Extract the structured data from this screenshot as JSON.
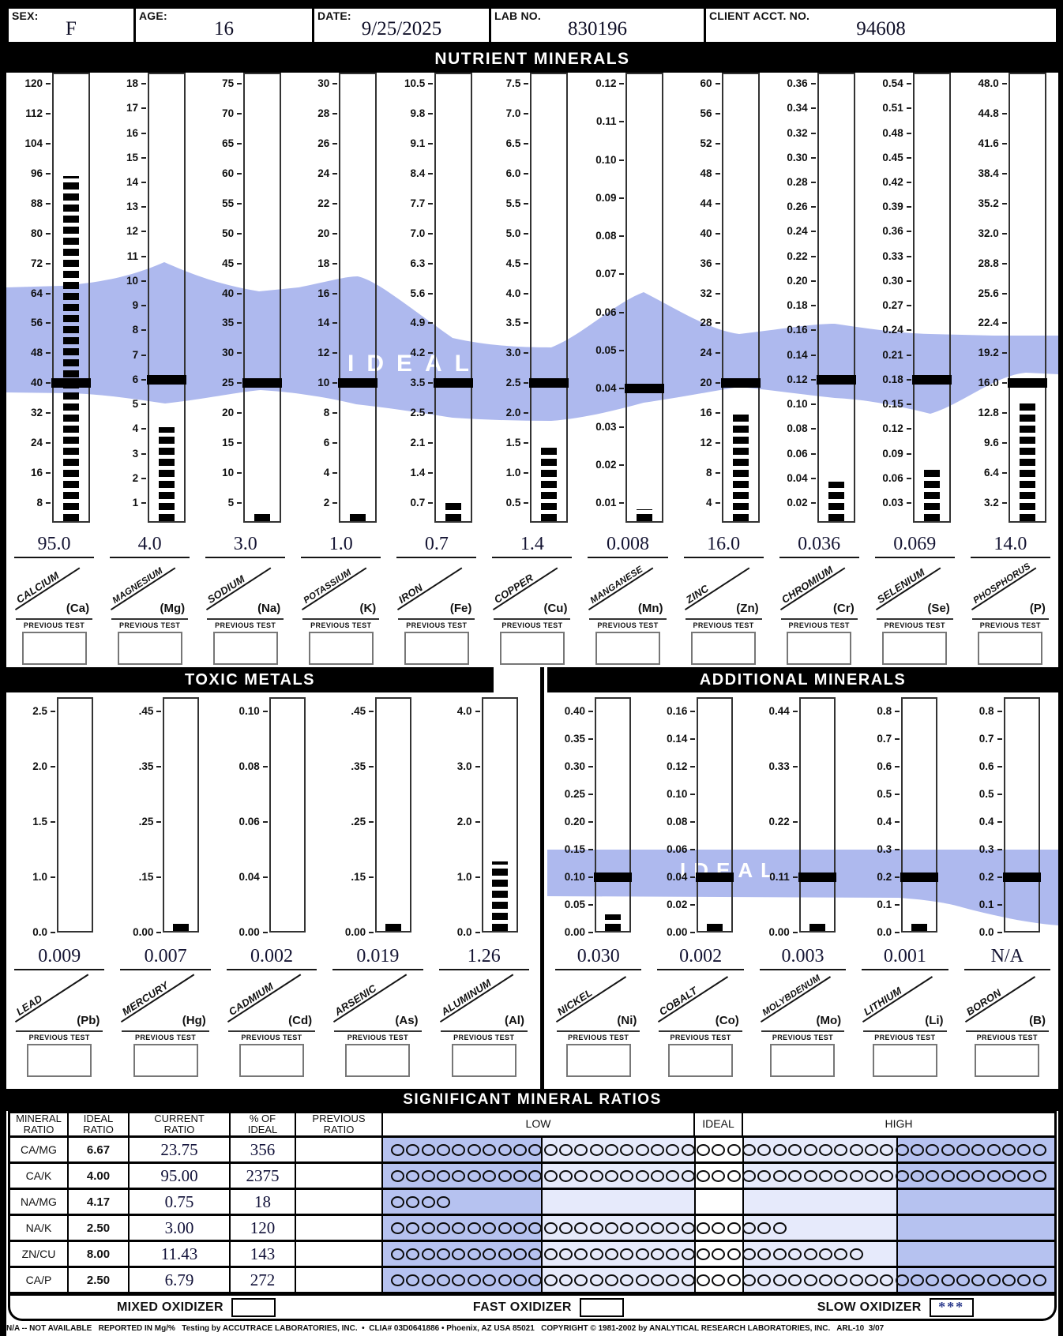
{
  "header": {
    "fields": [
      {
        "label": "SEX:",
        "value": "F"
      },
      {
        "label": "AGE:",
        "value": "16"
      },
      {
        "label": "DATE:",
        "value": "9/25/2025"
      },
      {
        "label": "LAB NO.",
        "value": "830196"
      },
      {
        "label": "CLIENT ACCT. NO.",
        "value": "94608"
      }
    ]
  },
  "sections": {
    "nutrient_title": "NUTRIENT MINERALS",
    "toxic_title": "TOXIC METALS",
    "additional_title": "ADDITIONAL MINERALS",
    "ratios_title": "SIGNIFICANT MINERAL RATIOS",
    "ideal_watermark": "IDEAL",
    "previous_test_label": "PREVIOUS TEST"
  },
  "colors": {
    "band": "#aeb9ee",
    "ratio_dark": "#b6c2f0",
    "ratio_light": "#e6eafb",
    "banner_bg": "#000000",
    "value_ink": "#141433"
  },
  "nutrient_minerals": {
    "charts": [
      {
        "id": "calcium",
        "name": "CALCIUM",
        "symbol": "(Ca)",
        "value": "95.0",
        "numeric": 95.0,
        "ideal": 40,
        "bar_visible": true,
        "previous": "",
        "ticks": [
          "120",
          "112",
          "104",
          "96",
          "88",
          "80",
          "72",
          "64",
          "56",
          "48",
          "40",
          "32",
          "24",
          "16",
          "8"
        ]
      },
      {
        "id": "magnesium",
        "name": "MAGNESIUM",
        "symbol": "(Mg)",
        "value": "4.0",
        "numeric": 4.0,
        "ideal": 6,
        "bar_visible": true,
        "previous": "",
        "ticks": [
          "18",
          "17",
          "16",
          "15",
          "14",
          "13",
          "12",
          "11",
          "10",
          "9",
          "8",
          "7",
          "6",
          "5",
          "4",
          "3",
          "2",
          "1"
        ]
      },
      {
        "id": "sodium",
        "name": "SODIUM",
        "symbol": "(Na)",
        "value": "3.0",
        "numeric": 3.0,
        "ideal": 25,
        "bar_visible": true,
        "previous": "",
        "ticks": [
          "75",
          "70",
          "65",
          "60",
          "55",
          "50",
          "45",
          "40",
          "35",
          "30",
          "25",
          "20",
          "15",
          "10",
          "5"
        ]
      },
      {
        "id": "potassium",
        "name": "POTASSIUM",
        "symbol": "(K)",
        "value": "1.0",
        "numeric": 1.0,
        "ideal": 10,
        "bar_visible": true,
        "previous": "",
        "ticks": [
          "30",
          "28",
          "26",
          "24",
          "22",
          "20",
          "18",
          "16",
          "14",
          "12",
          "10",
          "8",
          "6",
          "4",
          "2"
        ]
      },
      {
        "id": "iron",
        "name": "IRON",
        "symbol": "(Fe)",
        "value": "0.7",
        "numeric": 0.7,
        "ideal": 3.5,
        "bar_visible": true,
        "previous": "",
        "ticks": [
          "10.5",
          "9.8",
          "9.1",
          "8.4",
          "7.7",
          "7.0",
          "6.3",
          "5.6",
          "4.9",
          "4.2",
          "3.5",
          "2.5",
          "2.1",
          "1.4",
          "0.7"
        ]
      },
      {
        "id": "copper",
        "name": "COPPER",
        "symbol": "(Cu)",
        "value": "1.4",
        "numeric": 1.4,
        "ideal": 2.5,
        "bar_visible": true,
        "previous": "",
        "ticks": [
          "7.5",
          "7.0",
          "6.5",
          "6.0",
          "5.5",
          "5.0",
          "4.5",
          "4.0",
          "3.5",
          "3.0",
          "2.5",
          "2.0",
          "1.5",
          "1.0",
          "0.5"
        ]
      },
      {
        "id": "manganese",
        "name": "MANGANESE",
        "symbol": "(Mn)",
        "value": "0.008",
        "numeric": 0.008,
        "ideal": 0.04,
        "bar_visible": true,
        "previous": "",
        "ticks": [
          "0.12",
          "0.11",
          "0.10",
          "0.09",
          "0.08",
          "0.07",
          "0.06",
          "0.05",
          "0.04",
          "0.03",
          "0.02",
          "0.01"
        ]
      },
      {
        "id": "zinc",
        "name": "ZINC",
        "symbol": "(Zn)",
        "value": "16.0",
        "numeric": 16.0,
        "ideal": 20,
        "bar_visible": true,
        "previous": "",
        "ticks": [
          "60",
          "56",
          "52",
          "48",
          "44",
          "40",
          "36",
          "32",
          "28",
          "24",
          "20",
          "16",
          "12",
          "8",
          "4"
        ]
      },
      {
        "id": "chromium",
        "name": "CHROMIUM",
        "symbol": "(Cr)",
        "value": "0.036",
        "numeric": 0.036,
        "ideal": 0.12,
        "bar_visible": true,
        "previous": "",
        "ticks": [
          "0.36",
          "0.34",
          "0.32",
          "0.30",
          "0.28",
          "0.26",
          "0.24",
          "0.22",
          "0.20",
          "0.18",
          "0.16",
          "0.14",
          "0.12",
          "0.10",
          "0.08",
          "0.06",
          "0.04",
          "0.02"
        ]
      },
      {
        "id": "selenium",
        "name": "SELENIUM",
        "symbol": "(Se)",
        "value": "0.069",
        "numeric": 0.069,
        "ideal": 0.18,
        "bar_visible": true,
        "previous": "",
        "ticks": [
          "0.54",
          "0.51",
          "0.48",
          "0.45",
          "0.42",
          "0.39",
          "0.36",
          "0.33",
          "0.30",
          "0.27",
          "0.24",
          "0.21",
          "0.18",
          "0.15",
          "0.12",
          "0.09",
          "0.06",
          "0.03"
        ]
      },
      {
        "id": "phosphorus",
        "name": "PHOSPHORUS",
        "symbol": "(P)",
        "value": "14.0",
        "numeric": 14.0,
        "ideal": 16.0,
        "bar_visible": true,
        "previous": "",
        "ticks": [
          "48.0",
          "44.8",
          "41.6",
          "38.4",
          "35.2",
          "32.0",
          "28.8",
          "25.6",
          "22.4",
          "19.2",
          "16.0",
          "12.8",
          "9.6",
          "6.4",
          "3.2"
        ]
      }
    ]
  },
  "toxic_metals": {
    "charts": [
      {
        "id": "lead",
        "name": "LEAD",
        "symbol": "(Pb)",
        "value": "0.009",
        "numeric": 0.009,
        "ideal": null,
        "bar_visible": false,
        "previous": "",
        "ticks": [
          "2.5",
          "2.0",
          "1.5",
          "1.0",
          "0.0"
        ]
      },
      {
        "id": "mercury",
        "name": "MERCURY",
        "symbol": "(Hg)",
        "value": "0.007",
        "numeric": 0.007,
        "ideal": null,
        "bar_visible": true,
        "previous": "",
        "ticks": [
          ".45",
          ".35",
          ".25",
          ".15",
          "0.00"
        ]
      },
      {
        "id": "cadmium",
        "name": "CADMIUM",
        "symbol": "(Cd)",
        "value": "0.002",
        "numeric": 0.002,
        "ideal": null,
        "bar_visible": false,
        "previous": "",
        "ticks": [
          "0.10",
          "0.08",
          "0.06",
          "0.04",
          "0.00"
        ]
      },
      {
        "id": "arsenic",
        "name": "ARSENIC",
        "symbol": "(As)",
        "value": "0.019",
        "numeric": 0.019,
        "ideal": null,
        "bar_visible": true,
        "previous": "",
        "ticks": [
          ".45",
          ".35",
          ".25",
          ".15",
          "0.00"
        ]
      },
      {
        "id": "aluminum",
        "name": "ALUMINUM",
        "symbol": "(Al)",
        "value": "1.26",
        "numeric": 1.26,
        "ideal": null,
        "bar_visible": true,
        "previous": "",
        "ticks": [
          "4.0",
          "3.0",
          "2.0",
          "1.0",
          "0.0"
        ]
      }
    ]
  },
  "additional_minerals": {
    "charts": [
      {
        "id": "nickel",
        "name": "NICKEL",
        "symbol": "(Ni)",
        "value": "0.030",
        "numeric": 0.03,
        "ideal": 0.1,
        "bar_visible": true,
        "previous": "",
        "ticks": [
          "0.40",
          "0.35",
          "0.30",
          "0.25",
          "0.20",
          "0.15",
          "0.10",
          "0.05",
          "0.00"
        ]
      },
      {
        "id": "cobalt",
        "name": "COBALT",
        "symbol": "(Co)",
        "value": "0.002",
        "numeric": 0.002,
        "ideal": 0.04,
        "bar_visible": true,
        "previous": "",
        "ticks": [
          "0.16",
          "0.14",
          "0.12",
          "0.10",
          "0.08",
          "0.06",
          "0.04",
          "0.02",
          "0.00"
        ]
      },
      {
        "id": "molybdenum",
        "name": "MOLYBDENUM",
        "symbol": "(Mo)",
        "value": "0.003",
        "numeric": 0.003,
        "ideal": 0.11,
        "bar_visible": true,
        "previous": "",
        "ticks": [
          "0.44",
          "0.33",
          "0.22",
          "0.11",
          "0.00"
        ]
      },
      {
        "id": "lithium",
        "name": "LITHIUM",
        "symbol": "(Li)",
        "value": "0.001",
        "numeric": 0.001,
        "ideal": 0.2,
        "bar_visible": true,
        "previous": "",
        "ticks": [
          "0.8",
          "0.7",
          "0.6",
          "0.5",
          "0.4",
          "0.3",
          "0.2",
          "0.1",
          "0.0"
        ]
      },
      {
        "id": "boron",
        "name": "BORON",
        "symbol": "(B)",
        "value": "N/A",
        "numeric": null,
        "ideal": 0.2,
        "bar_visible": false,
        "previous": "",
        "ticks": [
          "0.8",
          "0.7",
          "0.6",
          "0.5",
          "0.4",
          "0.3",
          "0.2",
          "0.1",
          "0.0"
        ]
      }
    ]
  },
  "ratios": {
    "headers": [
      "MINERAL\nRATIO",
      "IDEAL\nRATIO",
      "CURRENT\nRATIO",
      "% OF\nIDEAL",
      "PREVIOUS\nRATIO"
    ],
    "zones": {
      "low": "LOW",
      "ideal": "IDEAL",
      "high": "HIGH"
    },
    "rows": [
      {
        "ratio": "CA/MG",
        "ideal": "6.67",
        "current": "23.75",
        "pct": "356",
        "previous": "",
        "circles": 43
      },
      {
        "ratio": "CA/K",
        "ideal": "4.00",
        "current": "95.00",
        "pct": "2375",
        "previous": "",
        "circles": 43
      },
      {
        "ratio": "NA/MG",
        "ideal": "4.17",
        "current": "0.75",
        "pct": "18",
        "previous": "",
        "circles": 4
      },
      {
        "ratio": "NA/K",
        "ideal": "2.50",
        "current": "3.00",
        "pct": "120",
        "previous": "",
        "circles": 26
      },
      {
        "ratio": "ZN/CU",
        "ideal": "8.00",
        "current": "11.43",
        "pct": "143",
        "previous": "",
        "circles": 31
      },
      {
        "ratio": "CA/P",
        "ideal": "2.50",
        "current": "6.79",
        "pct": "272",
        "previous": "",
        "circles": 43
      }
    ]
  },
  "oxidizers": [
    {
      "label": "MIXED OXIDIZER",
      "value": ""
    },
    {
      "label": "FAST OXIDIZER",
      "value": ""
    },
    {
      "label": "SLOW OXIDIZER",
      "value": "***"
    }
  ],
  "footer_text": "N/A -- NOT AVAILABLE   REPORTED IN Mg/%   Testing by ACCUTRACE LABORATORIES, INC.  •  CLIA# 03D0641886 • Phoenix, AZ USA 85021   COPYRIGHT © 1981-2002 by ANALYTICAL RESEARCH LABORATORIES, INC.   ARL-10  3/07",
  "chart_data": [
    {
      "type": "bar",
      "title": "NUTRIENT MINERALS",
      "categories": [
        "Calcium",
        "Magnesium",
        "Sodium",
        "Potassium",
        "Iron",
        "Copper",
        "Manganese",
        "Zinc",
        "Chromium",
        "Selenium",
        "Phosphorus"
      ],
      "values": [
        95.0,
        4.0,
        3.0,
        1.0,
        0.7,
        1.4,
        0.008,
        16.0,
        0.036,
        0.069,
        14.0
      ],
      "ideal_values": [
        40,
        6,
        25,
        10,
        3.5,
        2.5,
        0.04,
        20,
        0.12,
        0.18,
        16.0
      ],
      "axis_max": [
        120,
        18,
        75,
        30,
        10.5,
        7.5,
        0.12,
        60,
        0.36,
        0.54,
        48.0
      ],
      "legend_position": "none",
      "grid": false
    },
    {
      "type": "bar",
      "title": "TOXIC METALS",
      "categories": [
        "Lead",
        "Mercury",
        "Cadmium",
        "Arsenic",
        "Aluminum"
      ],
      "values": [
        0.009,
        0.007,
        0.002,
        0.019,
        1.26
      ],
      "axis_max": [
        2.5,
        0.45,
        0.1,
        0.45,
        4.0
      ],
      "legend_position": "none",
      "grid": false
    },
    {
      "type": "bar",
      "title": "ADDITIONAL MINERALS",
      "categories": [
        "Nickel",
        "Cobalt",
        "Molybdenum",
        "Lithium",
        "Boron"
      ],
      "values": [
        0.03,
        0.002,
        0.003,
        0.001,
        null
      ],
      "ideal_values": [
        0.1,
        0.04,
        0.11,
        0.2,
        0.2
      ],
      "axis_max": [
        0.4,
        0.16,
        0.44,
        0.8,
        0.8
      ],
      "legend_position": "none",
      "grid": false
    }
  ]
}
